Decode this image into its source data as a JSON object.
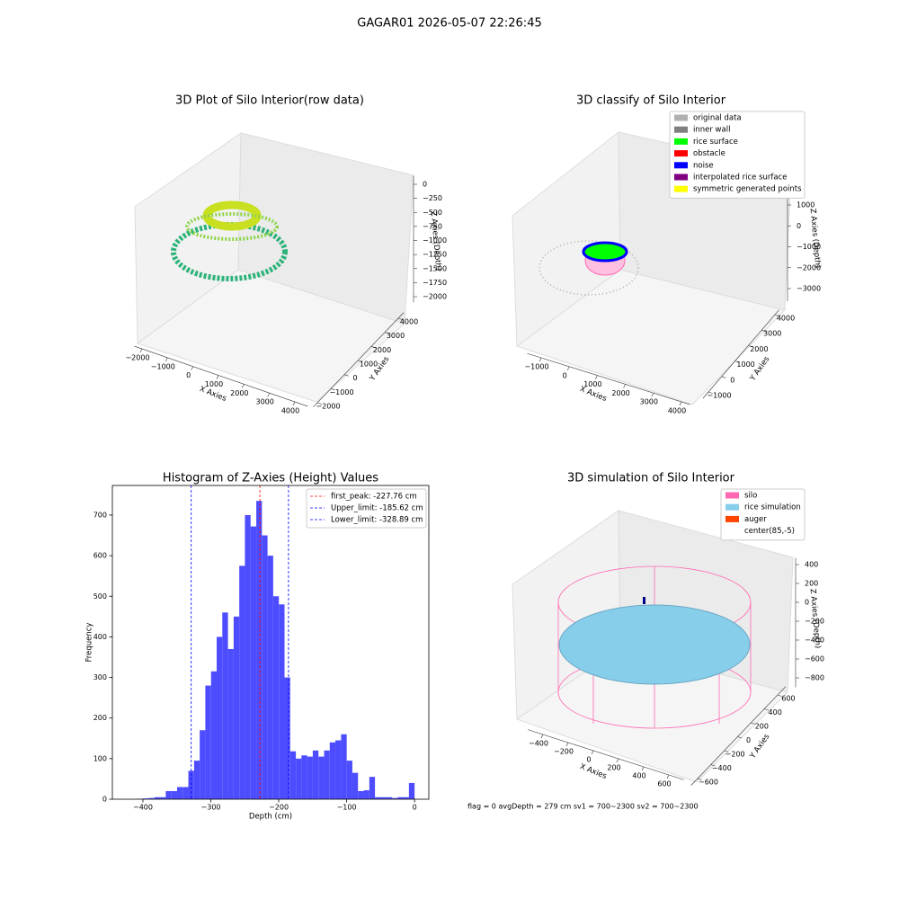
{
  "title": "GAGAR01 2026-05-07 22:26:45",
  "footer": "flag = 0     avgDepth = 279 cm  sv1 = 700~2300  sv2 = 700~2300",
  "chart_data": [
    {
      "type": "scatter3d",
      "title": "3D Plot of Silo Interior(row data)",
      "xlabel": "X Axies",
      "ylabel": "Y Axies",
      "zlabel": "Z Axies (Depth)",
      "xlim": [
        -2300,
        4500
      ],
      "ylim": [
        -2300,
        4400
      ],
      "zlim": [
        -2100,
        150
      ],
      "xticks": [
        {
          "value": -2000,
          "label": "−2000"
        },
        {
          "value": -1000,
          "label": "−1000"
        },
        0,
        1000,
        2000,
        3000,
        4000
      ],
      "yticks": [
        {
          "value": -2000,
          "label": "−2000"
        },
        {
          "value": -1000,
          "label": "−1000"
        },
        0,
        1000,
        2000,
        3000,
        4000
      ],
      "zticks": [
        0,
        {
          "value": -250,
          "label": "−250"
        },
        {
          "value": -500,
          "label": "−500"
        },
        {
          "value": -750,
          "label": "−750"
        },
        {
          "value": -1000,
          "label": "−1000"
        },
        {
          "value": -1250,
          "label": "−1250"
        },
        {
          "value": -1500,
          "label": "−1500"
        },
        {
          "value": -1750,
          "label": "−1750"
        },
        {
          "value": -2000,
          "label": "−2000"
        }
      ]
    },
    {
      "type": "scatter3d",
      "title": "3D classify of Silo Interior",
      "xlabel": "X Axies",
      "ylabel": "Y Axies",
      "zlabel": "Z Axies (Depth)",
      "xlim": [
        -1500,
        4300
      ],
      "ylim": [
        -1400,
        4300
      ],
      "zlim": [
        -3600,
        2000
      ],
      "xticks": [
        {
          "value": -1000,
          "label": "−1000"
        },
        0,
        1000,
        2000,
        3000,
        4000
      ],
      "yticks": [
        {
          "value": -1000,
          "label": "−1000"
        },
        0,
        1000,
        2000,
        3000,
        4000
      ],
      "zticks": [
        1000,
        0,
        {
          "value": -1000,
          "label": "−1000"
        },
        {
          "value": -2000,
          "label": "−2000"
        },
        {
          "value": -3000,
          "label": "−3000"
        }
      ],
      "legend_position": "upper right",
      "legend": [
        {
          "name": "original data",
          "color": "#b0b0b0"
        },
        {
          "name": "inner wall",
          "color": "#808080"
        },
        {
          "name": "rice surface",
          "color": "#00ff00"
        },
        {
          "name": "obstacle",
          "color": "#ff0000"
        },
        {
          "name": "noise",
          "color": "#0000ff"
        },
        {
          "name": "interpolated rice surface",
          "color": "#800080"
        },
        {
          "name": "symmetric generated points",
          "color": "#ffff00"
        }
      ]
    },
    {
      "type": "histogram",
      "title": "Histogram of Z-Axies (Height) Values",
      "xlabel": "Depth (cm)",
      "ylabel": "Frequency",
      "color": "#4d4dff",
      "xlim": [
        -445,
        21
      ],
      "ylim": [
        0,
        773
      ],
      "xticks": [
        {
          "value": -400,
          "label": "−400"
        },
        {
          "value": -300,
          "label": "−300"
        },
        {
          "value": -200,
          "label": "−200"
        },
        {
          "value": -100,
          "label": "−100"
        },
        0
      ],
      "yticks": [
        0,
        100,
        200,
        300,
        400,
        500,
        600,
        700
      ],
      "bins": [
        -408,
        -399.7,
        -391.3,
        -383.0,
        -374.7,
        -366.4,
        -358.0,
        -349.7,
        -341.4,
        -333.1,
        -324.7,
        -316.4,
        -308.1,
        -299.7,
        -291.4,
        -283.1,
        -274.8,
        -266.4,
        -258.1,
        -249.8,
        -241.5,
        -233.1,
        -224.8,
        -216.5,
        -208.2,
        -199.8,
        -191.5,
        -183.2,
        -174.8,
        -166.5,
        -158.2,
        -149.9,
        -141.5,
        -133.2,
        -124.9,
        -116.6,
        -108.2,
        -99.9,
        -91.6,
        -83.3,
        -74.9,
        -66.6,
        -58.3,
        -49.9,
        -41.6,
        -33.3,
        -25.0,
        -16.6,
        -8.3,
        0
      ],
      "counts": [
        1,
        2,
        3,
        5,
        5,
        20,
        20,
        30,
        30,
        70,
        95,
        170,
        280,
        315,
        400,
        460,
        370,
        450,
        575,
        700,
        672,
        735,
        650,
        600,
        500,
        480,
        300,
        118,
        100,
        108,
        105,
        120,
        105,
        120,
        140,
        145,
        160,
        95,
        65,
        20,
        22,
        55,
        5,
        5,
        5,
        3,
        5,
        5,
        40
      ],
      "legend_position": "upper right",
      "lines": [
        {
          "name": "first_peak: -227.76 cm",
          "value": -227.76,
          "color": "#ff0000"
        },
        {
          "name": "Upper_limit: -185.62 cm",
          "value": -185.62,
          "color": "#0000ff"
        },
        {
          "name": "Lower_limit: -328.89 cm",
          "value": -328.89,
          "color": "#0000ff"
        }
      ]
    },
    {
      "type": "surface3d",
      "title": "3D simulation of Silo Interior",
      "xlabel": "X Axies",
      "ylabel": "Y Axies",
      "zlabel": "Z Axies (Depth)",
      "xlim": [
        -520,
        720
      ],
      "ylim": [
        -700,
        720
      ],
      "zlim": [
        -900,
        470
      ],
      "xticks": [
        {
          "value": -400,
          "label": "−400"
        },
        {
          "value": -200,
          "label": "−200"
        },
        0,
        200,
        400,
        600
      ],
      "yticks": [
        {
          "value": -600,
          "label": "−600"
        },
        {
          "value": -400,
          "label": "−400"
        },
        {
          "value": -200,
          "label": "−200"
        },
        0,
        200,
        400,
        600
      ],
      "zticks": [
        400,
        200,
        0,
        {
          "value": -200,
          "label": "−200"
        },
        {
          "value": -400,
          "label": "−400"
        },
        {
          "value": -600,
          "label": "−600"
        },
        {
          "value": -800,
          "label": "−800"
        }
      ],
      "legend_position": "upper right",
      "legend": [
        {
          "name": "silo",
          "color": "#ff69b4"
        },
        {
          "name": "rice simulation",
          "color": "#87ceeb"
        },
        {
          "name": "auger",
          "color": "#ff4500"
        },
        {
          "name": "center(85,-5)",
          "color": "#ffffff"
        }
      ]
    }
  ]
}
